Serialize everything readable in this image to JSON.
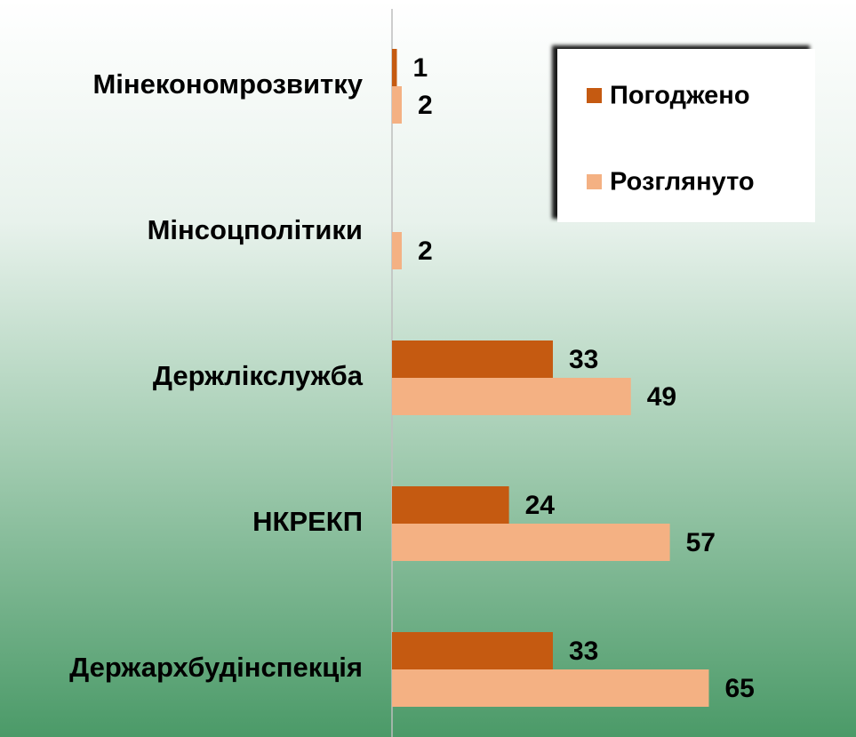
{
  "chart_data": {
    "type": "hbar",
    "categories": [
      "Мінекономрозвитку",
      "Мінсоцполітики",
      "Держлікслужба",
      "НКРЕКП",
      "Держархбудінспекція"
    ],
    "series": [
      {
        "name": "Погоджено",
        "color": "#c55a11",
        "values": [
          1,
          null,
          33,
          24,
          33
        ]
      },
      {
        "name": "Розглянуто",
        "color": "#f4b183",
        "values": [
          2,
          2,
          49,
          57,
          65
        ]
      }
    ],
    "xlim": [
      0,
      95
    ],
    "legend": "upper right"
  }
}
